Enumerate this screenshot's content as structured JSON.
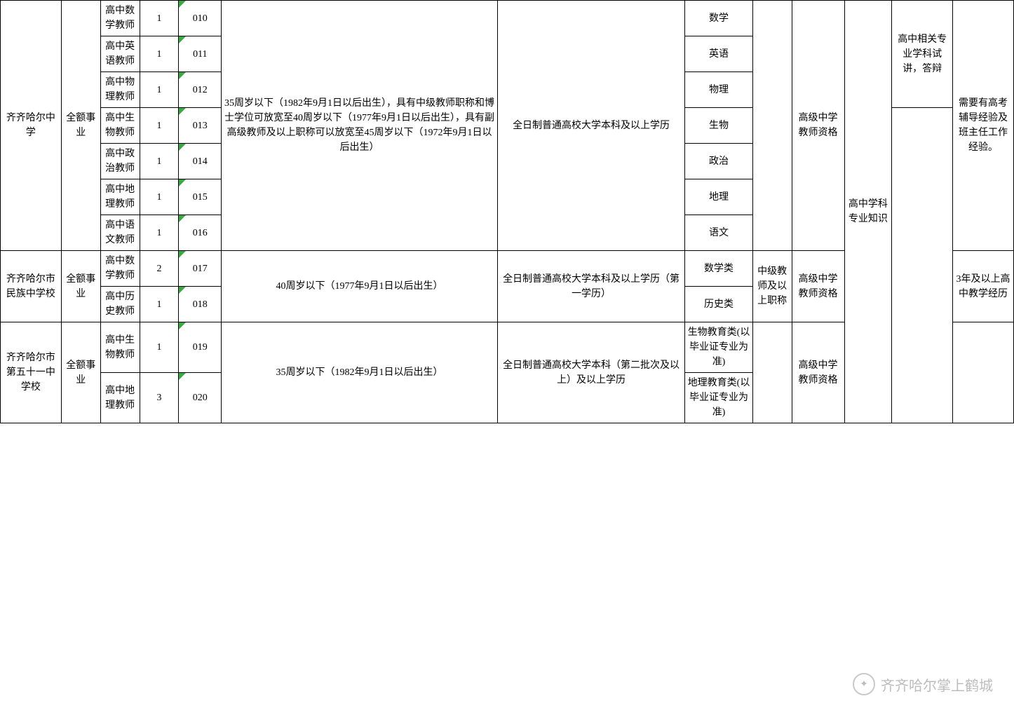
{
  "schools": [
    {
      "name": "齐齐哈尔中学",
      "funding": "全额事业",
      "age_req": "35周岁以下（1982年9月1日以后出生），具有中级教师职称和博士学位可放宽至40周岁以下（1977年9月1日以后出生），具有副高级教师及以上职称可以放宽至45周岁以下（1972年9月1日以后出生）",
      "edu_req": "全日制普通高校大学本科及以上学历",
      "title_req": "",
      "cert_req": "高级中学教师资格",
      "exam": "高中学科专业知识",
      "interview": "高中相关专业学科试讲，答辩",
      "note": "需要有高考辅导经验及班主任工作经验。",
      "positions": [
        {
          "name": "高中数学教师",
          "count": "1",
          "code": "010",
          "major": "数学"
        },
        {
          "name": "高中英语教师",
          "count": "1",
          "code": "011",
          "major": "英语"
        },
        {
          "name": "高中物理教师",
          "count": "1",
          "code": "012",
          "major": "物理"
        },
        {
          "name": "高中生物教师",
          "count": "1",
          "code": "013",
          "major": "生物"
        },
        {
          "name": "高中政治教师",
          "count": "1",
          "code": "014",
          "major": "政治"
        },
        {
          "name": "高中地理教师",
          "count": "1",
          "code": "015",
          "major": "地理"
        },
        {
          "name": "高中语文教师",
          "count": "1",
          "code": "016",
          "major": "语文"
        }
      ]
    },
    {
      "name": "齐齐哈尔市民族中学校",
      "funding": "全额事业",
      "age_req": "40周岁以下（1977年9月1日以后出生）",
      "edu_req": "全日制普通高校大学本科及以上学历（第一学历）",
      "title_req": "中级教师及以上职称",
      "cert_req": "高级中学教师资格",
      "note": "3年及以上高中教学经历",
      "positions": [
        {
          "name": "高中数学教师",
          "count": "2",
          "code": "017",
          "major": "数学类"
        },
        {
          "name": "高中历史教师",
          "count": "1",
          "code": "018",
          "major": "历史类"
        }
      ]
    },
    {
      "name": "齐齐哈尔市第五十一中学校",
      "funding": "全额事业",
      "age_req": "35周岁以下（1982年9月1日以后出生）",
      "edu_req": "全日制普通高校大学本科（第二批次及以上）及以上学历",
      "cert_req": "高级中学教师资格",
      "positions": [
        {
          "name": "高中生物教师",
          "count": "1",
          "code": "019",
          "major": "生物教育类(以毕业证专业为准)"
        },
        {
          "name": "高中地理教师",
          "count": "3",
          "code": "020",
          "major": "地理教育类(以毕业证专业为准)"
        }
      ]
    }
  ],
  "watermark": "齐齐哈尔掌上鹤城"
}
